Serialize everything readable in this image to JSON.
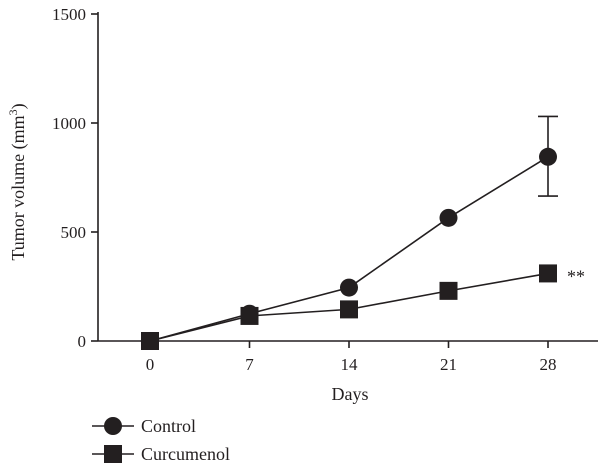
{
  "chart_data": {
    "type": "line",
    "title": "",
    "xlabel": "Days",
    "ylabel": "Tumor volume (mm",
    "ylabel_superscript": "3",
    "ylabel_close": ")",
    "x": [
      0,
      7,
      14,
      21,
      28
    ],
    "x_tick_labels": [
      "0",
      "7",
      "14",
      "21",
      "28"
    ],
    "ylim": [
      0,
      1500
    ],
    "y_ticks": [
      0,
      500,
      1000,
      1500
    ],
    "y_tick_labels": [
      "0",
      "500",
      "1000",
      "1500"
    ],
    "grid": false,
    "legend_position": "bottom-left",
    "series": [
      {
        "name": "Control",
        "marker": "circle",
        "values": [
          0,
          125,
          245,
          565,
          845
        ],
        "error_bars": [
          null,
          null,
          null,
          null,
          [
            665,
            1030
          ]
        ]
      },
      {
        "name": "Curcumenol",
        "marker": "square",
        "values": [
          0,
          115,
          145,
          230,
          310
        ]
      }
    ],
    "annotations": [
      {
        "text": "**",
        "x": 28,
        "y": 310,
        "series": "Curcumenol"
      }
    ],
    "color": "#231f20"
  }
}
